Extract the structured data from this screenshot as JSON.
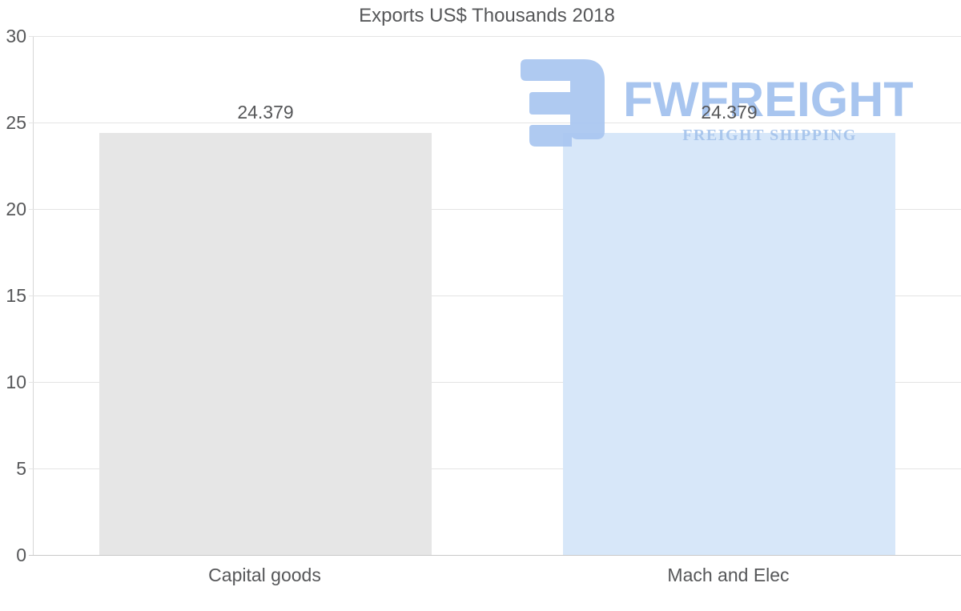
{
  "chart_data": {
    "type": "bar",
    "title": "Exports US$ Thousands 2018",
    "categories": [
      "Capital goods",
      "Mach and Elec"
    ],
    "values": [
      24.379,
      24.379
    ],
    "value_labels": [
      "24.379",
      "24.379"
    ],
    "series": [
      {
        "name": "Exports US$ Thousands 2018",
        "values": [
          24.379,
          24.379
        ]
      }
    ],
    "bar_colors": [
      "#e6e6e6",
      "#d7e7f9"
    ],
    "xlabel": "",
    "ylabel": "",
    "ylim": [
      0,
      30
    ],
    "yticks": [
      0,
      5,
      10,
      15,
      20,
      25,
      30
    ],
    "grid": "horizontal",
    "legend": "none"
  },
  "watermark": {
    "brand": "FWFREIGHT",
    "tagline": "FREIGHT SHIPPING",
    "icon": "fwfreight-logo-icon",
    "color": "#a9c6f1",
    "text_color": "#a2c1ee"
  },
  "colors": {
    "background": "#ffffff",
    "text": "#565759",
    "gridline": "#e4e4e4",
    "baseline": "#c9c9c9",
    "axis_line": "#d6d6d6"
  }
}
